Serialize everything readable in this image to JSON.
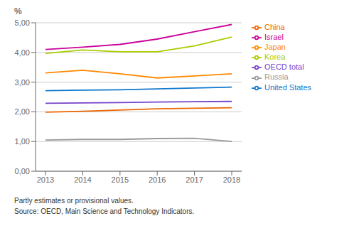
{
  "chart_data": {
    "type": "line",
    "ylabel": "%",
    "x": [
      2013,
      2014,
      2015,
      2016,
      2017,
      2018
    ],
    "xlim": [
      2013,
      2018
    ],
    "xticks": [
      2013,
      2014,
      2015,
      2016,
      2017,
      2018
    ],
    "ylim": [
      0.0,
      5.0
    ],
    "yticks": [
      {
        "value": 0.0,
        "label": "0,00"
      },
      {
        "value": 1.0,
        "label": "1,00"
      },
      {
        "value": 2.0,
        "label": "2,00"
      },
      {
        "value": 3.0,
        "label": "3,00"
      },
      {
        "value": 4.0,
        "label": "4,00"
      },
      {
        "value": 5.0,
        "label": "5,00"
      }
    ],
    "series": [
      {
        "name": "Israel",
        "color": "#cc0099",
        "values": [
          4.1,
          4.18,
          4.27,
          4.45,
          4.7,
          4.94
        ]
      },
      {
        "name": "Korea",
        "color": "#aacc00",
        "values": [
          3.97,
          4.08,
          4.02,
          4.02,
          4.22,
          4.52
        ]
      },
      {
        "name": "Japan",
        "color": "#ff8800",
        "values": [
          3.31,
          3.4,
          3.28,
          3.14,
          3.21,
          3.28
        ]
      },
      {
        "name": "United States",
        "color": "#1177cc",
        "values": [
          2.71,
          2.73,
          2.74,
          2.77,
          2.8,
          2.83
        ]
      },
      {
        "name": "OECD total",
        "color": "#7744cc",
        "values": [
          2.29,
          2.3,
          2.31,
          2.33,
          2.34,
          2.35
        ]
      },
      {
        "name": "China",
        "color": "#ee6600",
        "values": [
          1.99,
          2.02,
          2.06,
          2.1,
          2.12,
          2.14
        ]
      },
      {
        "name": "Russia",
        "color": "#999999",
        "values": [
          1.05,
          1.07,
          1.07,
          1.1,
          1.11,
          1.0
        ]
      }
    ],
    "grid": true,
    "legend": "right",
    "annotations": [
      "Partly estimates or provisional values.",
      "Source: OECD, Main Science and Technology Indicators."
    ]
  }
}
